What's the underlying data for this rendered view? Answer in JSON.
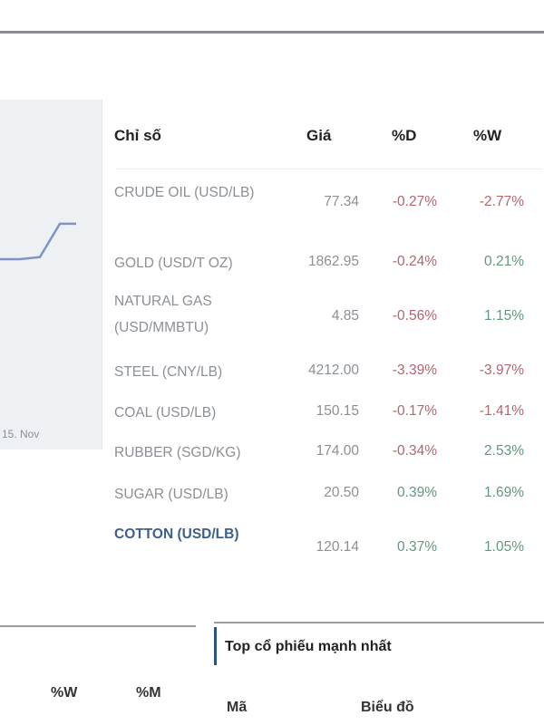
{
  "chart": {
    "x_tick_label": "15. Nov",
    "line_color": "#7f93c7",
    "background": "#eef1f4",
    "series_values": [
      0.0,
      0.0,
      0.05,
      0.85,
      0.85
    ]
  },
  "table": {
    "headers": {
      "name": "Chỉ số",
      "price": "Giá",
      "day": "%D",
      "week": "%W"
    },
    "rows": [
      {
        "name": "CRUDE OIL (USD/LB)",
        "price": "77.34",
        "day": "-0.27%",
        "week": "-2.77%",
        "day_sign": "neg",
        "week_sign": "neg"
      },
      {
        "name": "GOLD (USD/T OZ)",
        "price": "1862.95",
        "day": "-0.24%",
        "week": "0.21%",
        "day_sign": "neg",
        "week_sign": "pos"
      },
      {
        "name": "NATURAL GAS (USD/MMBTU)",
        "price": "4.85",
        "day": "-0.56%",
        "week": "1.15%",
        "day_sign": "neg",
        "week_sign": "pos"
      },
      {
        "name": "STEEL (CNY/LB)",
        "price": "4212.00",
        "day": "-3.39%",
        "week": "-3.97%",
        "day_sign": "neg",
        "week_sign": "neg"
      },
      {
        "name": "COAL (USD/LB)",
        "price": "150.15",
        "day": "-0.17%",
        "week": "-1.41%",
        "day_sign": "neg",
        "week_sign": "neg"
      },
      {
        "name": "RUBBER (SGD/KG)",
        "price": "174.00",
        "day": "-0.34%",
        "week": "2.53%",
        "day_sign": "neg",
        "week_sign": "pos"
      },
      {
        "name": "SUGAR (USD/LB)",
        "price": "20.50",
        "day": "0.39%",
        "week": "1.69%",
        "day_sign": "pos",
        "week_sign": "pos"
      },
      {
        "name": "COTTON (USD/LB)",
        "price": "120.14",
        "day": "0.37%",
        "week": "1.05%",
        "day_sign": "pos",
        "week_sign": "pos",
        "active": true
      }
    ]
  },
  "bottom_left": {
    "col_week": "%W",
    "col_month": "%M"
  },
  "bottom_right": {
    "title": "Top cổ phiếu mạnh nhất",
    "col_code": "Mã",
    "col_chart": "Biểu đồ"
  },
  "colors": {
    "negative": "#b5656c",
    "positive": "#5f9a7a",
    "accent": "#2b5486",
    "active_name": "#3c5f8f"
  }
}
